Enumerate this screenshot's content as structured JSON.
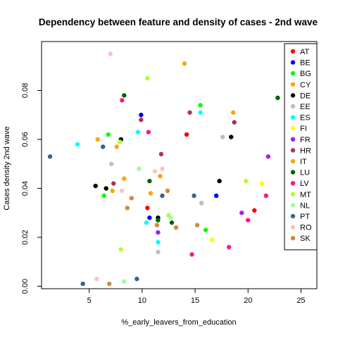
{
  "chart_data": {
    "type": "scatter",
    "title": "Dependency between feature and density of cases -  2nd wave",
    "xlabel": "%_early_leavers_from_education",
    "ylabel": "Cases density  2nd wave",
    "xlim": [
      0.5,
      26.5
    ],
    "ylim": [
      -0.001,
      0.1
    ],
    "xticks": [
      5,
      10,
      15,
      20,
      25
    ],
    "yticks": [
      0.0,
      0.02,
      0.04,
      0.06,
      0.08
    ],
    "ytick_labels": [
      "0.00",
      "0.02",
      "0.04",
      "0.06",
      "0.08"
    ],
    "grid": false,
    "legend_position": "right-inside",
    "series": [
      {
        "name": "AT",
        "color": "#ff0000",
        "points": [
          [
            10.5,
            0.032
          ],
          [
            14.2,
            0.062
          ],
          [
            20.6,
            0.031
          ]
        ]
      },
      {
        "name": "BE",
        "color": "#0000ff",
        "points": [
          [
            9.9,
            0.07
          ],
          [
            10.7,
            0.028
          ],
          [
            17.0,
            0.037
          ]
        ]
      },
      {
        "name": "BG",
        "color": "#00ff00",
        "points": [
          [
            6.4,
            0.037
          ],
          [
            6.8,
            0.062
          ],
          [
            15.5,
            0.074
          ],
          [
            16.0,
            0.023
          ]
        ]
      },
      {
        "name": "CY",
        "color": "#ffa500",
        "points": [
          [
            5.8,
            0.06
          ],
          [
            7.6,
            0.057
          ],
          [
            18.6,
            0.071
          ]
        ]
      },
      {
        "name": "DE",
        "color": "#000000",
        "points": [
          [
            5.6,
            0.041
          ],
          [
            6.6,
            0.04
          ],
          [
            8.0,
            0.06
          ],
          [
            11.5,
            0.028
          ],
          [
            17.3,
            0.043
          ],
          [
            18.4,
            0.061
          ]
        ]
      },
      {
        "name": "EE",
        "color": "#bebebe",
        "points": [
          [
            7.1,
            0.05
          ],
          [
            11.5,
            0.014
          ],
          [
            15.6,
            0.034
          ],
          [
            17.6,
            0.061
          ]
        ]
      },
      {
        "name": "ES",
        "color": "#00ffff",
        "points": [
          [
            3.9,
            0.058
          ],
          [
            9.6,
            0.063
          ],
          [
            10.4,
            0.026
          ],
          [
            11.5,
            0.018
          ],
          [
            15.5,
            0.071
          ]
        ]
      },
      {
        "name": "FI",
        "color": "#ffff00",
        "points": [
          [
            16.6,
            0.019
          ],
          [
            21.3,
            0.042
          ]
        ]
      },
      {
        "name": "FR",
        "color": "#a020f0",
        "points": [
          [
            11.5,
            0.022
          ],
          [
            19.4,
            0.03
          ],
          [
            21.9,
            0.053
          ]
        ]
      },
      {
        "name": "HR",
        "color": "#b03060",
        "points": [
          [
            7.3,
            0.042
          ],
          [
            9.9,
            0.068
          ],
          [
            11.8,
            0.054
          ],
          [
            14.5,
            0.071
          ],
          [
            18.7,
            0.067
          ]
        ]
      },
      {
        "name": "IT",
        "color": "#f5a800",
        "points": [
          [
            7.2,
            0.039
          ],
          [
            8.3,
            0.044
          ],
          [
            10.8,
            0.038
          ],
          [
            11.7,
            0.045
          ],
          [
            14.0,
            0.091
          ]
        ]
      },
      {
        "name": "LU",
        "color": "#006400",
        "points": [
          [
            8.3,
            0.078
          ],
          [
            10.7,
            0.043
          ],
          [
            11.5,
            0.027
          ],
          [
            12.8,
            0.026
          ],
          [
            22.8,
            0.077
          ]
        ]
      },
      {
        "name": "LV",
        "color": "#ff1493",
        "points": [
          [
            8.1,
            0.076
          ],
          [
            10.6,
            0.063
          ],
          [
            14.7,
            0.013
          ],
          [
            18.2,
            0.016
          ],
          [
            20.0,
            0.027
          ],
          [
            21.7,
            0.037
          ]
        ]
      },
      {
        "name": "MT",
        "color": "#adff2f",
        "points": [
          [
            7.9,
            0.059
          ],
          [
            8.0,
            0.015
          ],
          [
            10.5,
            0.085
          ],
          [
            12.5,
            0.029
          ],
          [
            19.8,
            0.043
          ]
        ]
      },
      {
        "name": "NL",
        "color": "#9aff9a",
        "points": [
          [
            8.3,
            0.002
          ],
          [
            9.7,
            0.048
          ],
          [
            12.7,
            0.028
          ]
        ]
      },
      {
        "name": "PT",
        "color": "#36648b",
        "points": [
          [
            1.3,
            0.053
          ],
          [
            4.4,
            0.001
          ],
          [
            6.3,
            0.057
          ],
          [
            9.5,
            0.003
          ],
          [
            11.9,
            0.037
          ],
          [
            14.9,
            0.037
          ]
        ]
      },
      {
        "name": "RO",
        "color": "#ffc1c1",
        "points": [
          [
            5.7,
            0.003
          ],
          [
            7.0,
            0.095
          ],
          [
            8.1,
            0.039
          ],
          [
            11.2,
            0.047
          ],
          [
            11.9,
            0.048
          ]
        ]
      },
      {
        "name": "SK",
        "color": "#d2893e",
        "points": [
          [
            6.9,
            0.001
          ],
          [
            8.6,
            0.032
          ],
          [
            9.0,
            0.036
          ],
          [
            11.4,
            0.025
          ],
          [
            12.4,
            0.039
          ],
          [
            13.2,
            0.024
          ],
          [
            15.2,
            0.025
          ]
        ]
      }
    ]
  }
}
